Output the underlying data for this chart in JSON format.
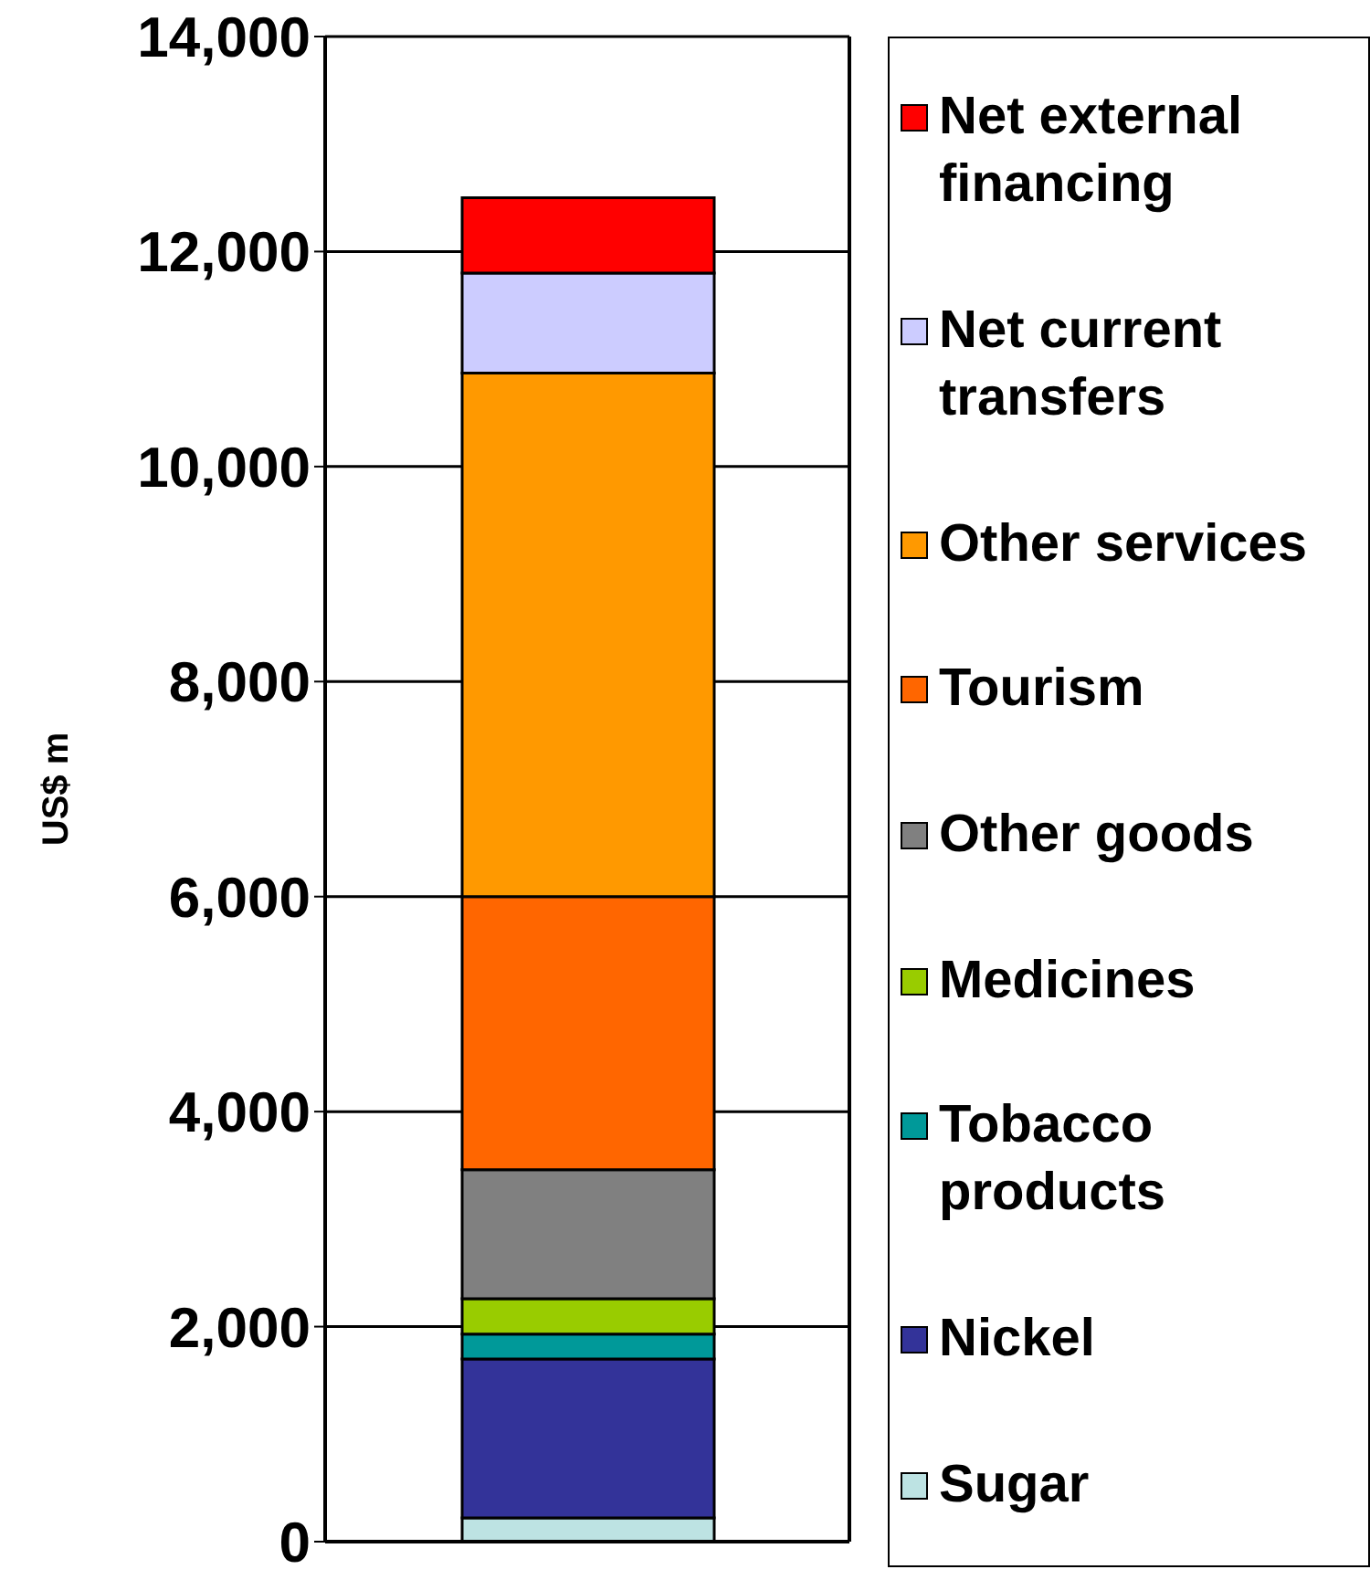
{
  "chart_data": {
    "type": "bar",
    "ylabel": "US$ m",
    "categories": [
      null
    ],
    "stacked": true,
    "ylim": [
      0,
      14000
    ],
    "yticks": [
      0,
      {
        "value": 2000,
        "label": "2,000"
      },
      {
        "value": 4000,
        "label": "4,000"
      },
      {
        "value": 6000,
        "label": "6,000"
      },
      {
        "value": 8000,
        "label": "8,000"
      },
      {
        "value": 10000,
        "label": "10,000"
      },
      {
        "value": 12000,
        "label": "12,000"
      },
      {
        "value": 14000,
        "label": "14,000"
      }
    ],
    "grid": "y",
    "legend": "right",
    "series": [
      {
        "name": "Sugar",
        "color": "#bde3e3",
        "values": [
          220
        ]
      },
      {
        "name": "Nickel",
        "color": "#333399",
        "values": [
          1480
        ]
      },
      {
        "name": "Tobacco products",
        "color": "#009999",
        "values": [
          230
        ]
      },
      {
        "name": "Medicines",
        "color": "#99cc00",
        "values": [
          330
        ]
      },
      {
        "name": "Other goods",
        "color": "#808080",
        "values": [
          1200
        ]
      },
      {
        "name": "Tourism",
        "color": "#ff6600",
        "values": [
          2540
        ]
      },
      {
        "name": "Other services",
        "color": "#ff9900",
        "values": [
          4870
        ]
      },
      {
        "name": "Net current transfers",
        "color": "#ccccff",
        "values": [
          930
        ]
      },
      {
        "name": "Net external financing",
        "color": "#ff0000",
        "values": [
          700
        ]
      }
    ]
  }
}
